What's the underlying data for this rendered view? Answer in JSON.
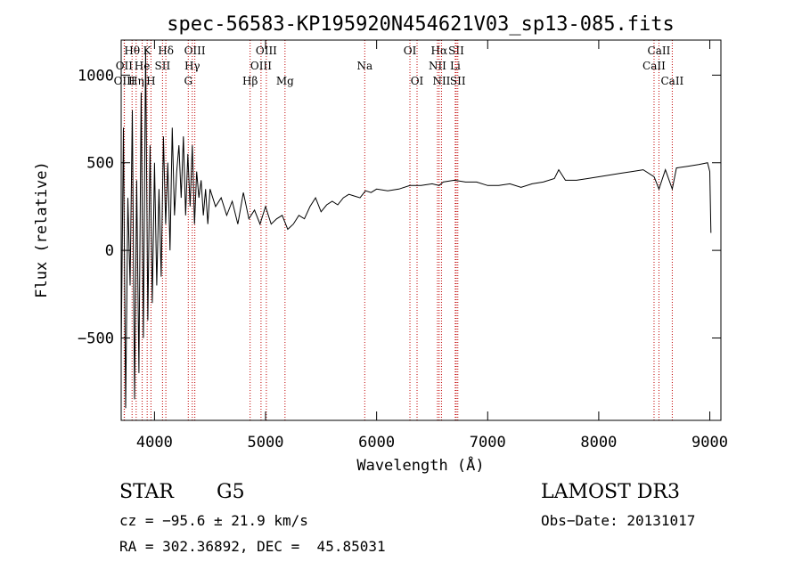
{
  "chart_data": {
    "type": "line",
    "title": "spec-56583-KP195920N454621V03_sp13-085.fits",
    "xlabel": "Wavelength (Å)",
    "ylabel": "Flux (relative)",
    "xlim": [
      3700,
      9100
    ],
    "ylim": [
      -970,
      1200
    ],
    "xticks": [
      4000,
      5000,
      6000,
      7000,
      8000,
      9000
    ],
    "yticks": [
      -500,
      0,
      500,
      1000
    ],
    "grid": false,
    "series": [
      {
        "name": "spectrum",
        "x": [
          3700,
          3720,
          3740,
          3760,
          3780,
          3800,
          3820,
          3840,
          3860,
          3880,
          3900,
          3920,
          3940,
          3960,
          3980,
          4000,
          4020,
          4040,
          4060,
          4080,
          4100,
          4120,
          4140,
          4160,
          4180,
          4200,
          4220,
          4240,
          4260,
          4280,
          4300,
          4320,
          4340,
          4360,
          4380,
          4400,
          4420,
          4440,
          4460,
          4480,
          4500,
          4550,
          4600,
          4650,
          4700,
          4750,
          4800,
          4850,
          4900,
          4950,
          5000,
          5050,
          5100,
          5150,
          5200,
          5250,
          5300,
          5350,
          5400,
          5450,
          5500,
          5550,
          5600,
          5650,
          5700,
          5750,
          5800,
          5850,
          5900,
          5950,
          6000,
          6100,
          6200,
          6300,
          6400,
          6500,
          6563,
          6600,
          6700,
          6800,
          6900,
          7000,
          7100,
          7200,
          7300,
          7400,
          7500,
          7600,
          7640,
          7700,
          7800,
          7900,
          8000,
          8100,
          8200,
          8300,
          8400,
          8498,
          8542,
          8600,
          8662,
          8700,
          8800,
          8900,
          8980,
          9000,
          9010
        ],
        "y": [
          -600,
          700,
          -900,
          300,
          -200,
          800,
          -850,
          400,
          -700,
          900,
          -500,
          1150,
          -400,
          600,
          -300,
          500,
          -200,
          350,
          -150,
          650,
          150,
          500,
          0,
          700,
          200,
          450,
          600,
          300,
          650,
          200,
          550,
          250,
          600,
          150,
          450,
          300,
          400,
          200,
          350,
          150,
          350,
          250,
          300,
          200,
          280,
          150,
          330,
          180,
          230,
          150,
          250,
          150,
          180,
          200,
          120,
          150,
          200,
          180,
          250,
          300,
          220,
          260,
          280,
          260,
          300,
          320,
          310,
          300,
          340,
          330,
          350,
          340,
          350,
          370,
          370,
          380,
          370,
          390,
          400,
          390,
          390,
          370,
          370,
          380,
          360,
          380,
          390,
          410,
          460,
          400,
          400,
          410,
          420,
          430,
          440,
          450,
          460,
          420,
          350,
          460,
          350,
          470,
          480,
          490,
          500,
          450,
          100
        ]
      }
    ],
    "lines": [
      {
        "label": "Hθ",
        "x": 3798,
        "row": 1
      },
      {
        "label": "OII",
        "x": 3727,
        "row": 2
      },
      {
        "label": "OIII",
        "x": 3729,
        "row": 3
      },
      {
        "label": "Hη",
        "x": 3835,
        "row": 3
      },
      {
        "label": "K",
        "x": 3934,
        "row": 1
      },
      {
        "label": "He",
        "x": 3889,
        "row": 2
      },
      {
        "label": "H",
        "x": 3968,
        "row": 3
      },
      {
        "label": "SII",
        "x": 4072,
        "row": 2
      },
      {
        "label": "Hδ",
        "x": 4102,
        "row": 1
      },
      {
        "label": "OIII",
        "x": 4363,
        "row": 1
      },
      {
        "label": "Hγ",
        "x": 4340,
        "row": 2
      },
      {
        "label": "G",
        "x": 4304,
        "row": 3
      },
      {
        "label": "OIII",
        "x": 5007,
        "row": 1
      },
      {
        "label": "OIII",
        "x": 4959,
        "row": 2
      },
      {
        "label": "Hβ",
        "x": 4861,
        "row": 3
      },
      {
        "label": "Mg",
        "x": 5175,
        "row": 3
      },
      {
        "label": "Na",
        "x": 5893,
        "row": 2
      },
      {
        "label": "OI",
        "x": 6300,
        "row": 1
      },
      {
        "label": "OI",
        "x": 6364,
        "row": 3
      },
      {
        "label": "Hα",
        "x": 6563,
        "row": 1
      },
      {
        "label": "SII",
        "x": 6717,
        "row": 1
      },
      {
        "label": "NII",
        "x": 6548,
        "row": 2
      },
      {
        "label": "Li",
        "x": 6708,
        "row": 2
      },
      {
        "label": "NII",
        "x": 6584,
        "row": 3
      },
      {
        "label": "SII",
        "x": 6731,
        "row": 3
      },
      {
        "label": "CaII",
        "x": 8542,
        "row": 1
      },
      {
        "label": "CaII",
        "x": 8498,
        "row": 2
      },
      {
        "label": "CaII",
        "x": 8662,
        "row": 3
      }
    ]
  },
  "info": {
    "class_label": "STAR",
    "subclass": "G5",
    "survey": "LAMOST DR3",
    "cz": "cz = −95.6 ± 21.9 km/s",
    "obs_date": "Obs−Date: 20131017",
    "coords": "RA = 302.36892, DEC =  45.85031"
  }
}
